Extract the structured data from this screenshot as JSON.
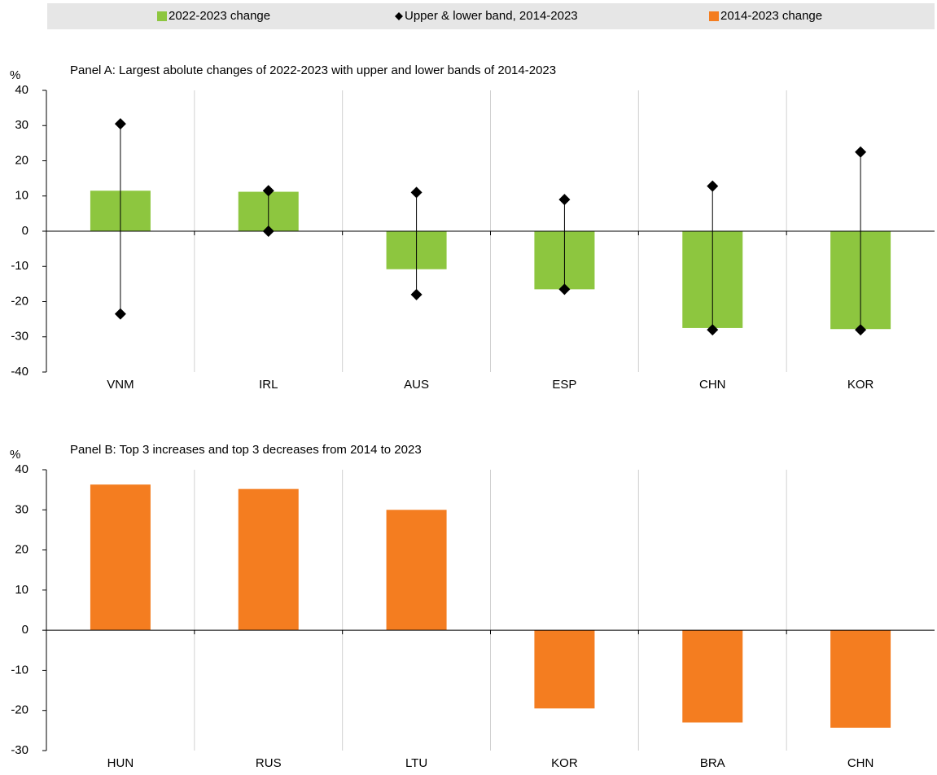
{
  "chart_data": [
    {
      "type": "bar_range",
      "title": "Panel A: Largest abolute changes of 2022-2023 with upper and lower bands of 2014-2023",
      "y_label": "%",
      "categories": [
        "VNM",
        "IRL",
        "AUS",
        "ESP",
        "CHN",
        "KOR"
      ],
      "series": [
        {
          "name": "2022-2023 change",
          "color": "#8dc63f",
          "values": [
            11.5,
            11.2,
            -10.8,
            -16.5,
            -27.5,
            -27.8
          ]
        },
        {
          "name": "Upper & lower band, 2014-2023",
          "color": "#000000",
          "upper": [
            30.5,
            11.5,
            11,
            9,
            12.8,
            22.5
          ],
          "lower": [
            -23.5,
            0,
            -18,
            -16.5,
            -28,
            -28
          ]
        }
      ],
      "ylim": [
        -40,
        40
      ],
      "yticks": [
        -40,
        -30,
        -20,
        -10,
        0,
        10,
        20,
        30,
        40
      ]
    },
    {
      "type": "bar",
      "title": "Panel B: Top 3 increases and top 3 decreases from 2014 to 2023",
      "y_label": "%",
      "categories": [
        "HUN",
        "RUS",
        "LTU",
        "KOR",
        "BRA",
        "CHN"
      ],
      "series": [
        {
          "name": "2014-2023 change",
          "color": "#f47d20",
          "values": [
            36.3,
            35.2,
            30,
            -19.5,
            -23,
            -24.3
          ]
        }
      ],
      "ylim": [
        -30,
        40
      ],
      "yticks": [
        -30,
        -20,
        -10,
        0,
        10,
        20,
        30,
        40
      ]
    }
  ]
}
